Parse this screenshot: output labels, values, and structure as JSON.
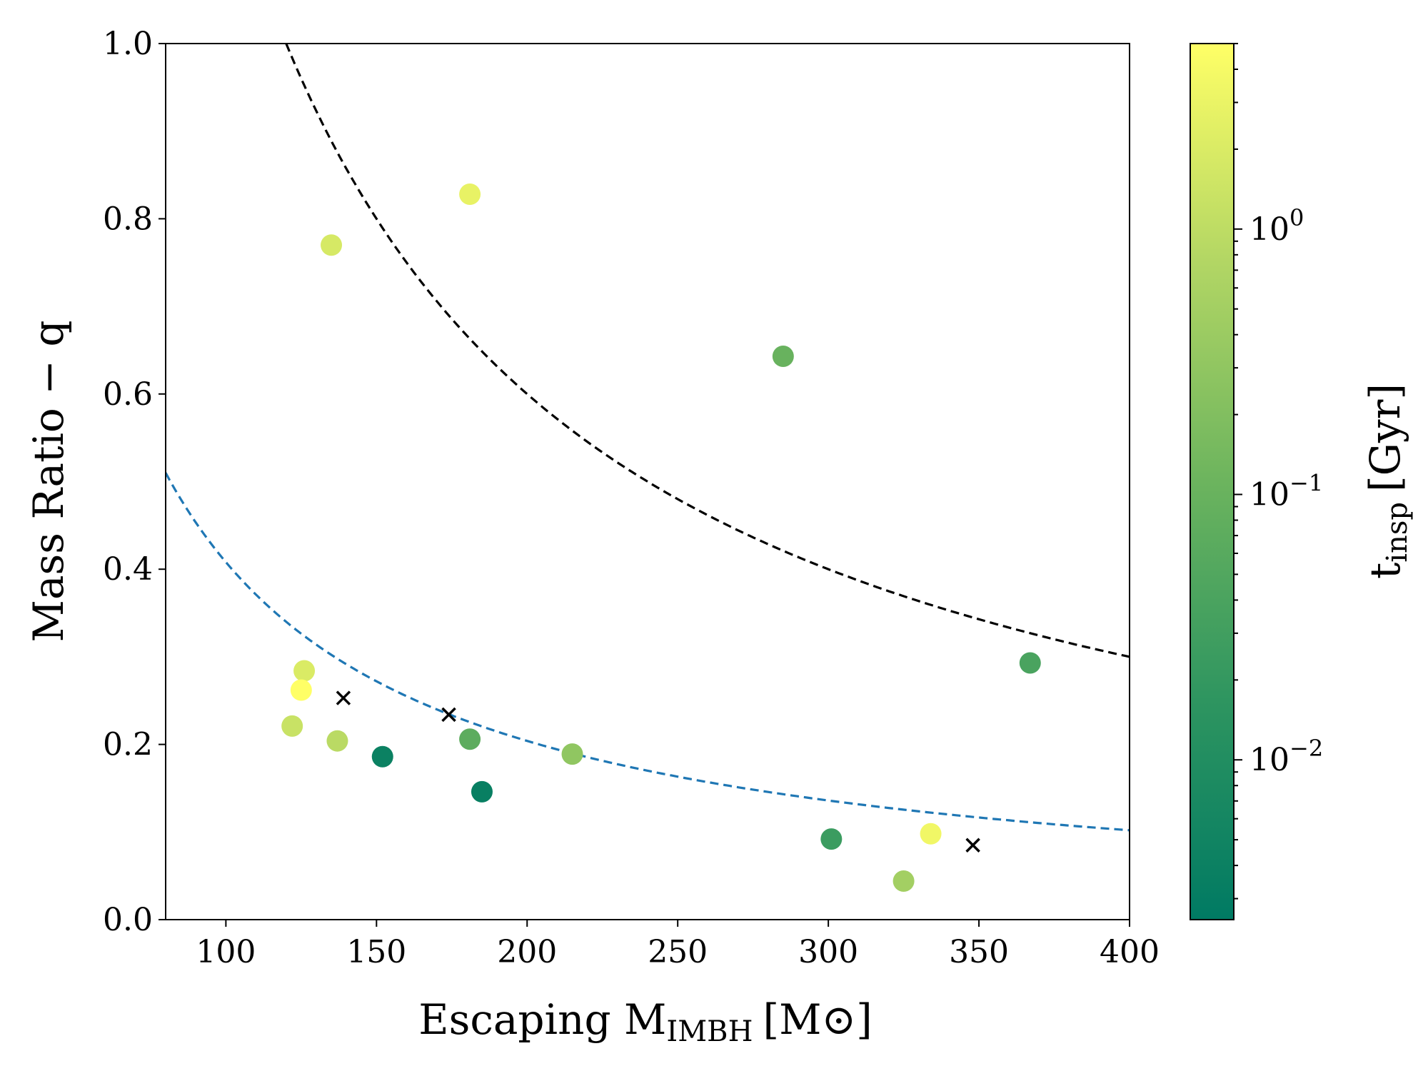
{
  "chart_data": {
    "type": "scatter",
    "xlabel": "Escaping M",
    "xlabel_sub": "IMBH",
    "xlabel_unit": "[M⊙]",
    "ylabel": "Mass Ratio − q",
    "colorbar_label": "t",
    "colorbar_label_sub": "insp",
    "colorbar_label_unit": "[Gyr]",
    "xlim": [
      80,
      400
    ],
    "ylim": [
      0.0,
      1.0
    ],
    "x_ticks": [
      100,
      150,
      200,
      250,
      300,
      350,
      400
    ],
    "x_tick_labels": [
      "100",
      "150",
      "200",
      "250",
      "300",
      "350",
      "400"
    ],
    "y_ticks": [
      0.0,
      0.2,
      0.4,
      0.6,
      0.8,
      1.0
    ],
    "y_tick_labels": [
      "0.0",
      "0.2",
      "0.4",
      "0.6",
      "0.8",
      "1.0"
    ],
    "colorbar": {
      "scale": "log",
      "range": [
        0.0025,
        5.0
      ],
      "ticks": [
        0.01,
        0.1,
        1.0
      ],
      "tick_labels": [
        {
          "base": "10",
          "exp": "−2"
        },
        {
          "base": "10",
          "exp": "−1"
        },
        {
          "base": "10",
          "exp": "0"
        }
      ],
      "colormap": [
        "#007a63",
        "#2e9560",
        "#6cb45e",
        "#b2d664",
        "#ffff66"
      ]
    },
    "grid": false,
    "points": [
      {
        "x": 135,
        "y": 0.77,
        "t": 1.8
      },
      {
        "x": 181,
        "y": 0.828,
        "t": 2.8
      },
      {
        "x": 285,
        "y": 0.643,
        "t": 0.1
      },
      {
        "x": 367,
        "y": 0.293,
        "t": 0.04
      },
      {
        "x": 126,
        "y": 0.284,
        "t": 2.0
      },
      {
        "x": 125,
        "y": 0.262,
        "t": 5.0
      },
      {
        "x": 122,
        "y": 0.221,
        "t": 1.3
      },
      {
        "x": 137,
        "y": 0.204,
        "t": 0.9
      },
      {
        "x": 152,
        "y": 0.186,
        "t": 0.004
      },
      {
        "x": 181,
        "y": 0.206,
        "t": 0.07
      },
      {
        "x": 185,
        "y": 0.146,
        "t": 0.0035
      },
      {
        "x": 215,
        "y": 0.189,
        "t": 0.3
      },
      {
        "x": 301,
        "y": 0.092,
        "t": 0.025
      },
      {
        "x": 325,
        "y": 0.044,
        "t": 0.5
      },
      {
        "x": 334,
        "y": 0.098,
        "t": 3.5
      }
    ],
    "crosses": [
      {
        "x": 139,
        "y": 0.253
      },
      {
        "x": 174,
        "y": 0.234
      },
      {
        "x": 348,
        "y": 0.085
      }
    ],
    "curves": [
      {
        "color": "#000000",
        "k": 120,
        "x_range": [
          120,
          400
        ]
      },
      {
        "color": "#1f77b4",
        "k": 40.8,
        "x_range": [
          80,
          400
        ]
      }
    ]
  }
}
